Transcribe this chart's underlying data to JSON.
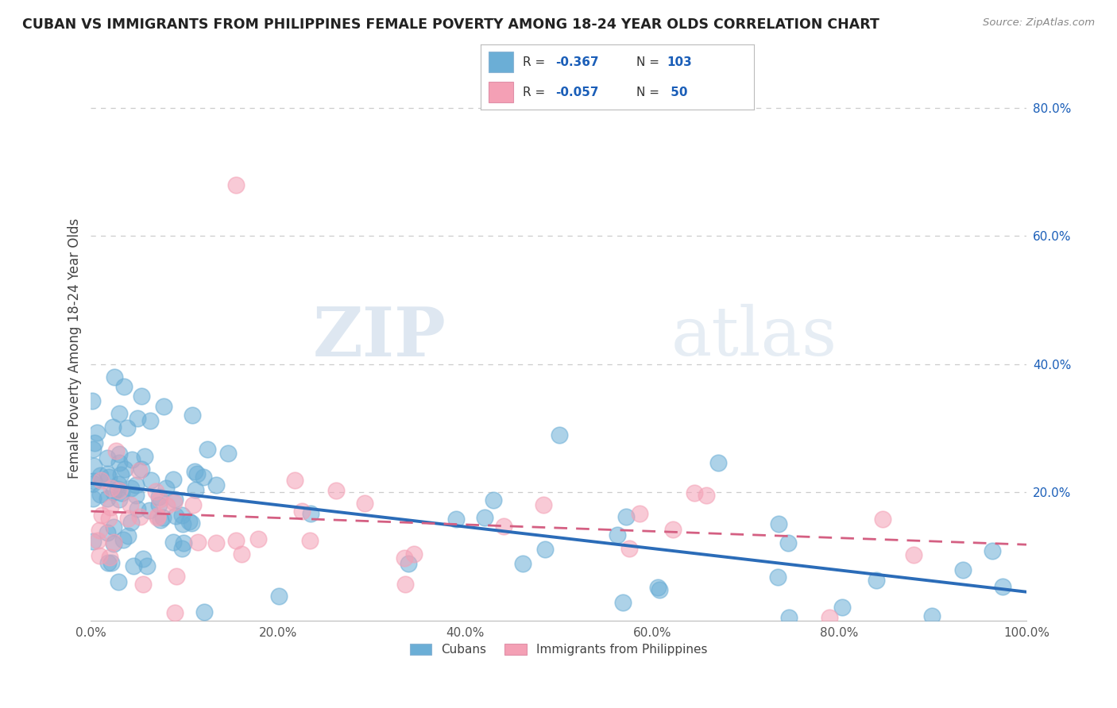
{
  "title": "CUBAN VS IMMIGRANTS FROM PHILIPPINES FEMALE POVERTY AMONG 18-24 YEAR OLDS CORRELATION CHART",
  "source": "Source: ZipAtlas.com",
  "ylabel": "Female Poverty Among 18-24 Year Olds",
  "xlim": [
    0,
    1.0
  ],
  "ylim": [
    0,
    0.85
  ],
  "series1_label": "Cubans",
  "series2_label": "Immigrants from Philippines",
  "series1_color": "#6baed6",
  "series2_color": "#f4a0b5",
  "series1_R": "-0.367",
  "series1_N": "103",
  "series2_R": "-0.057",
  "series2_N": "50",
  "legend_R_color": "#1a5eb8",
  "trend1_color": "#2b6cb8",
  "trend2_color": "#d45f82",
  "watermark_zip": "ZIP",
  "watermark_atlas": "atlas",
  "background_color": "#ffffff",
  "grid_color": "#cccccc"
}
